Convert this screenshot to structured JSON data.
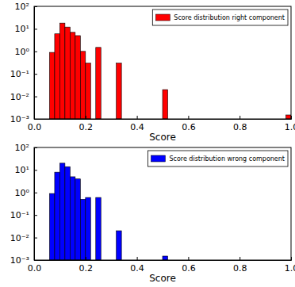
{
  "chart_data": [
    {
      "type": "histogram",
      "xlabel": "Score",
      "log": "y",
      "legend": "upper right",
      "xlim": [
        0,
        1
      ],
      "ylim": [
        0.001,
        100
      ],
      "xticks": [
        {
          "value": 0,
          "label": "0.0"
        },
        {
          "value": 0.2,
          "label": "0.2"
        },
        {
          "value": 0.4,
          "label": "0.4"
        },
        {
          "value": 0.6,
          "label": "0.6"
        },
        {
          "value": 0.8,
          "label": "0.8"
        },
        {
          "value": 1,
          "label": "1.0"
        }
      ],
      "yticks": [
        {
          "value": 0.001,
          "label": "10⁻³"
        },
        {
          "value": 0.01,
          "label": "10⁻²"
        },
        {
          "value": 0.1,
          "label": "10⁻¹"
        },
        {
          "value": 1,
          "label": "10⁰"
        },
        {
          "value": 10,
          "label": "10¹"
        },
        {
          "value": 100,
          "label": "10²"
        }
      ],
      "bins": [
        0,
        0.02,
        0.04,
        0.06,
        0.08,
        0.1,
        0.12,
        0.14,
        0.16,
        0.18,
        0.2,
        0.22,
        0.24,
        0.26,
        0.28,
        0.3,
        0.32,
        0.34,
        0.36,
        0.38,
        0.4,
        0.42,
        0.44,
        0.46,
        0.48,
        0.5,
        0.52,
        0.54,
        0.56,
        0.58,
        0.6,
        0.62,
        0.64,
        0.66,
        0.68,
        0.7,
        0.72,
        0.74,
        0.76,
        0.78,
        0.8,
        0.82,
        0.84,
        0.86,
        0.88,
        0.9,
        0.92,
        0.94,
        0.96,
        0.98,
        1
      ],
      "series": [
        {
          "name": "Score distribution right component",
          "color": "#ff0000",
          "values": [
            null,
            null,
            null,
            0.9,
            6,
            18,
            12,
            7,
            5,
            1.0,
            0.3,
            null,
            1.5,
            null,
            null,
            null,
            0.3,
            null,
            null,
            null,
            null,
            null,
            null,
            null,
            null,
            0.02,
            null,
            null,
            null,
            null,
            null,
            null,
            null,
            null,
            null,
            null,
            null,
            null,
            null,
            null,
            null,
            null,
            null,
            null,
            null,
            null,
            null,
            null,
            null,
            0.0015
          ]
        }
      ]
    },
    {
      "type": "histogram",
      "xlabel": "Score",
      "log": "y",
      "legend": "upper right",
      "xlim": [
        0,
        1
      ],
      "ylim": [
        0.001,
        100
      ],
      "xticks": [
        {
          "value": 0,
          "label": "0.0"
        },
        {
          "value": 0.2,
          "label": "0.2"
        },
        {
          "value": 0.4,
          "label": "0.4"
        },
        {
          "value": 0.6,
          "label": "0.6"
        },
        {
          "value": 0.8,
          "label": "0.8"
        },
        {
          "value": 1,
          "label": "1.0"
        }
      ],
      "yticks": [
        {
          "value": 0.001,
          "label": "10⁻³"
        },
        {
          "value": 0.01,
          "label": "10⁻²"
        },
        {
          "value": 0.1,
          "label": "10⁻¹"
        },
        {
          "value": 1,
          "label": "10⁰"
        },
        {
          "value": 10,
          "label": "10¹"
        },
        {
          "value": 100,
          "label": "10²"
        }
      ],
      "bins": [
        0,
        0.02,
        0.04,
        0.06,
        0.08,
        0.1,
        0.12,
        0.14,
        0.16,
        0.18,
        0.2,
        0.22,
        0.24,
        0.26,
        0.28,
        0.3,
        0.32,
        0.34,
        0.36,
        0.38,
        0.4,
        0.42,
        0.44,
        0.46,
        0.48,
        0.5,
        0.52,
        0.54,
        0.56,
        0.58,
        0.6,
        0.62,
        0.64,
        0.66,
        0.68,
        0.7,
        0.72,
        0.74,
        0.76,
        0.78,
        0.8,
        0.82,
        0.84,
        0.86,
        0.88,
        0.9,
        0.92,
        0.94,
        0.96,
        0.98,
        1
      ],
      "series": [
        {
          "name": "Score distribution wrong component",
          "color": "#0000ff",
          "values": [
            null,
            null,
            null,
            0.9,
            8,
            20,
            14,
            5,
            4,
            0.5,
            0.6,
            null,
            0.6,
            null,
            null,
            null,
            0.02,
            null,
            null,
            null,
            null,
            null,
            null,
            null,
            null,
            0.0015,
            null,
            null,
            null,
            null,
            null,
            null,
            null,
            null,
            null,
            null,
            null,
            null,
            null,
            null,
            null,
            null,
            null,
            null,
            null,
            null,
            null,
            null,
            null,
            null
          ]
        }
      ]
    }
  ]
}
